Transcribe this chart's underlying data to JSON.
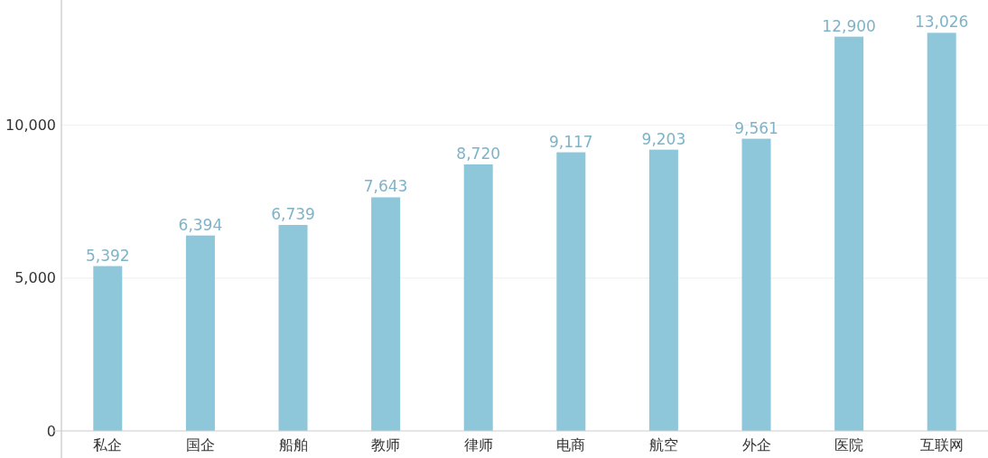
{
  "chart_data": {
    "type": "bar",
    "categories": [
      "私企",
      "国企",
      "船舶",
      "教师",
      "律师",
      "电商",
      "航空",
      "外企",
      "医院",
      "互联网"
    ],
    "values": [
      5392,
      6394,
      6739,
      7643,
      8720,
      9117,
      9203,
      9561,
      12900,
      13026
    ],
    "color": "#8ec6da",
    "ylim": [
      0,
      14100
    ],
    "yticks": [
      0,
      {
        "value": 5000,
        "label": "5,000"
      },
      {
        "value": 10000,
        "label": "10,000"
      }
    ],
    "value_labels": [
      "5,392",
      "6,394",
      "6,739",
      "7,643",
      "8,720",
      "9,117",
      "9,203",
      "9,561",
      "12,900",
      "13,026"
    ],
    "grid": "y"
  }
}
